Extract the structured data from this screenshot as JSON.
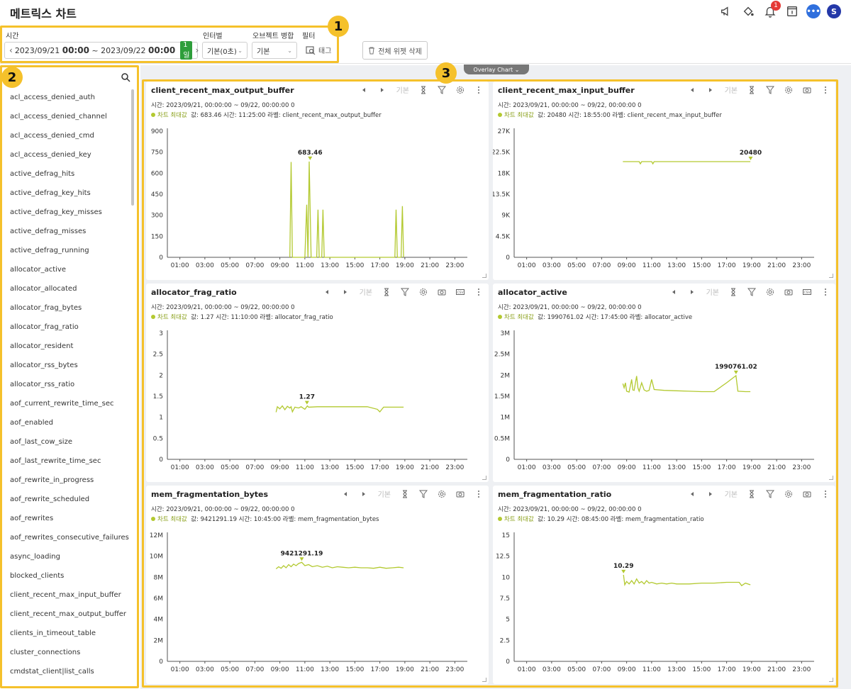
{
  "header": {
    "title": "메트릭스 차트",
    "notification_count": "1",
    "user_initial": "S"
  },
  "toolbar": {
    "time_label": "시간",
    "time_start_date": "2023/09/21",
    "time_start_hm": "00:00",
    "time_sep": "~",
    "time_end_date": "2023/09/22",
    "time_end_hm": "00:00",
    "time_range_badge": "1일",
    "interval_label": "인터벌",
    "interval_value": "기본(0초)",
    "merge_label": "오브젝트 병합",
    "merge_value": "기본",
    "filter_label": "필터",
    "filter_tag": "태그",
    "delete_all": "전체 위젯 삭제",
    "overlay_chart": "Overlay Chart"
  },
  "callouts": [
    "1",
    "2",
    "3"
  ],
  "sidebar": {
    "items": [
      "acl_access_denied_auth",
      "acl_access_denied_channel",
      "acl_access_denied_cmd",
      "acl_access_denied_key",
      "active_defrag_hits",
      "active_defrag_key_hits",
      "active_defrag_key_misses",
      "active_defrag_misses",
      "active_defrag_running",
      "allocator_active",
      "allocator_allocated",
      "allocator_frag_bytes",
      "allocator_frag_ratio",
      "allocator_resident",
      "allocator_rss_bytes",
      "allocator_rss_ratio",
      "aof_current_rewrite_time_sec",
      "aof_enabled",
      "aof_last_cow_size",
      "aof_last_rewrite_time_sec",
      "aof_rewrite_in_progress",
      "aof_rewrite_scheduled",
      "aof_rewrites",
      "aof_rewrites_consecutive_failures",
      "async_loading",
      "blocked_clients",
      "client_recent_max_input_buffer",
      "client_recent_max_output_buffer",
      "clients_in_timeout_table",
      "cluster_connections",
      "cmdstat_client|list_calls"
    ]
  },
  "card_common": {
    "tool_default": "기본",
    "max_label": "차트 최대값",
    "time_line": "시간: 2023/09/21, 00:00:00 ~ 09/22, 00:00:00   0"
  },
  "colors": {
    "series": "#b3c930",
    "highlight": "#f5c12b"
  },
  "chart_data": [
    {
      "type": "line",
      "title": "client_recent_max_output_buffer",
      "max_info": "값: 683.46   시간: 11:25:00   라벨: client_recent_max_output_buffer",
      "peak_label": "683.46",
      "ylim": [
        0,
        900
      ],
      "yticks": [
        "0",
        "150",
        "300",
        "450",
        "600",
        "750",
        "900"
      ],
      "ytick_values": [
        0,
        150,
        300,
        450,
        600,
        750,
        900
      ],
      "xticks": [
        "01:00",
        "03:00",
        "05:00",
        "07:00",
        "09:00",
        "11:00",
        "13:00",
        "15:00",
        "17:00",
        "19:00",
        "21:00",
        "23:00"
      ],
      "x": [
        9.8,
        9.9,
        10.0,
        10.1,
        11.0,
        11.15,
        11.25,
        11.35,
        11.5,
        11.95,
        12.05,
        12.15,
        12.35,
        12.45,
        12.55,
        18.2,
        18.3,
        18.4,
        18.7,
        18.8,
        18.9
      ],
      "y": [
        0,
        680,
        0,
        0,
        0,
        375,
        0,
        683,
        0,
        0,
        340,
        0,
        0,
        340,
        0,
        0,
        340,
        0,
        0,
        365,
        0
      ],
      "peak": [
        11.42,
        683.46
      ],
      "with_csv": false
    },
    {
      "type": "line",
      "title": "client_recent_max_input_buffer",
      "max_info": "값: 20480   시간: 18:55:00   라벨: client_recent_max_input_buffer",
      "peak_label": "20480",
      "ylim": [
        0,
        27000
      ],
      "yticks": [
        "0",
        "4.5K",
        "9K",
        "13.5K",
        "18K",
        "22.5K",
        "27K"
      ],
      "ytick_values": [
        0,
        4500,
        9000,
        13500,
        18000,
        22500,
        27000
      ],
      "xticks": [
        "01:00",
        "03:00",
        "05:00",
        "07:00",
        "09:00",
        "11:00",
        "13:00",
        "15:00",
        "17:00",
        "19:00",
        "21:00",
        "23:00"
      ],
      "x": [
        8.7,
        9.5,
        10.0,
        10.1,
        10.2,
        11.0,
        11.1,
        11.2,
        12.0,
        14.0,
        16.0,
        18.0,
        18.9
      ],
      "y": [
        20480,
        20480,
        20480,
        20000,
        20480,
        20480,
        20000,
        20480,
        20480,
        20480,
        20480,
        20480,
        20480
      ],
      "peak": [
        18.92,
        20480
      ],
      "with_csv": false
    },
    {
      "type": "line",
      "title": "allocator_frag_ratio",
      "max_info": "값: 1.27   시간: 11:10:00   라벨: allocator_frag_ratio",
      "peak_label": "1.27",
      "ylim": [
        0,
        3
      ],
      "yticks": [
        "0",
        "0.5",
        "1",
        "1.5",
        "2",
        "2.5",
        "3"
      ],
      "ytick_values": [
        0,
        0.5,
        1,
        1.5,
        2,
        2.5,
        3
      ],
      "xticks": [
        "01:00",
        "03:00",
        "05:00",
        "07:00",
        "09:00",
        "11:00",
        "13:00",
        "15:00",
        "17:00",
        "19:00",
        "21:00",
        "23:00"
      ],
      "x": [
        8.7,
        8.8,
        9.0,
        9.2,
        9.4,
        9.6,
        9.8,
        9.9,
        10.0,
        10.2,
        10.5,
        10.7,
        11.0,
        11.2,
        11.3,
        12.0,
        13.0,
        14.0,
        15.0,
        16.0,
        16.8,
        17.0,
        17.3,
        18.0,
        18.9
      ],
      "y": [
        1.12,
        1.25,
        1.2,
        1.27,
        1.18,
        1.26,
        1.22,
        1.25,
        1.13,
        1.24,
        1.22,
        1.25,
        1.19,
        1.27,
        1.24,
        1.25,
        1.25,
        1.25,
        1.25,
        1.25,
        1.19,
        1.13,
        1.24,
        1.24,
        1.24
      ],
      "peak": [
        11.17,
        1.27
      ],
      "with_csv": true
    },
    {
      "type": "line",
      "title": "allocator_active",
      "max_info": "값: 1990761.02   시간: 17:45:00   라벨: allocator_active",
      "peak_label": "1990761.02",
      "ylim": [
        0,
        3000000
      ],
      "yticks": [
        "0",
        "0.5M",
        "1M",
        "1.5M",
        "2M",
        "2.5M",
        "3M"
      ],
      "ytick_values": [
        0,
        500000,
        1000000,
        1500000,
        2000000,
        2500000,
        3000000
      ],
      "xticks": [
        "01:00",
        "03:00",
        "05:00",
        "07:00",
        "09:00",
        "11:00",
        "13:00",
        "15:00",
        "17:00",
        "19:00",
        "21:00",
        "23:00"
      ],
      "x": [
        8.7,
        8.8,
        8.9,
        9.0,
        9.2,
        9.4,
        9.5,
        9.6,
        9.8,
        9.9,
        10.0,
        10.2,
        10.4,
        10.6,
        10.8,
        11.0,
        11.2,
        12.0,
        13.0,
        14.0,
        15.0,
        16.0,
        17.0,
        17.75,
        17.9,
        18.5,
        18.9
      ],
      "y": [
        1800000,
        1700000,
        1820000,
        1620000,
        1600000,
        1900000,
        1650000,
        1640000,
        1980000,
        1700000,
        1620000,
        1820000,
        1650000,
        1620000,
        1640000,
        1900000,
        1660000,
        1640000,
        1630000,
        1620000,
        1610000,
        1610000,
        1820000,
        1990761,
        1620000,
        1610000,
        1610000
      ],
      "peak": [
        17.75,
        1990761.02
      ],
      "with_csv": true
    },
    {
      "type": "line",
      "title": "mem_fragmentation_bytes",
      "max_info": "값: 9421291.19   시간: 10:45:00   라벨: mem_fragmentation_bytes",
      "peak_label": "9421291.19",
      "ylim": [
        0,
        12000000
      ],
      "yticks": [
        "0",
        "2M",
        "4M",
        "6M",
        "8M",
        "10M",
        "12M"
      ],
      "ytick_values": [
        0,
        2000000,
        4000000,
        6000000,
        8000000,
        10000000,
        12000000
      ],
      "xticks": [
        "01:00",
        "03:00",
        "05:00",
        "07:00",
        "09:00",
        "11:00",
        "13:00",
        "15:00",
        "17:00",
        "19:00",
        "21:00",
        "23:00"
      ],
      "x": [
        8.7,
        8.9,
        9.1,
        9.3,
        9.5,
        9.7,
        9.9,
        10.1,
        10.3,
        10.5,
        10.75,
        11.0,
        11.3,
        11.6,
        12.0,
        12.4,
        12.8,
        13.2,
        13.6,
        14.0,
        14.5,
        15.0,
        15.5,
        16.0,
        16.5,
        17.0,
        17.5,
        18.0,
        18.5,
        18.9
      ],
      "y": [
        8800000,
        9000000,
        8850000,
        9100000,
        8900000,
        9200000,
        9000000,
        9250000,
        9100000,
        9300000,
        9421291,
        9100000,
        9200000,
        9000000,
        9100000,
        8950000,
        9050000,
        8900000,
        9000000,
        8950000,
        8900000,
        8950000,
        8900000,
        8900000,
        8850000,
        8950000,
        8850000,
        8900000,
        8950000,
        8900000
      ],
      "peak": [
        10.75,
        9421291.19
      ],
      "with_csv": false
    },
    {
      "type": "line",
      "title": "mem_fragmentation_ratio",
      "max_info": "값: 10.29   시간: 08:45:00   라벨: mem_fragmentation_ratio",
      "peak_label": "10.29",
      "ylim": [
        0,
        15
      ],
      "yticks": [
        "0",
        "2.5",
        "5",
        "7.5",
        "10",
        "12.5",
        "15"
      ],
      "ytick_values": [
        0,
        2.5,
        5,
        7.5,
        10,
        12.5,
        15
      ],
      "xticks": [
        "01:00",
        "03:00",
        "05:00",
        "07:00",
        "09:00",
        "11:00",
        "13:00",
        "15:00",
        "17:00",
        "19:00",
        "21:00",
        "23:00"
      ],
      "x": [
        8.75,
        8.85,
        9.0,
        9.2,
        9.4,
        9.6,
        9.8,
        10.0,
        10.2,
        10.4,
        10.6,
        10.8,
        11.0,
        11.4,
        11.8,
        12.2,
        12.6,
        13.0,
        14.0,
        15.0,
        16.0,
        17.0,
        18.0,
        18.2,
        18.5,
        18.9
      ],
      "y": [
        10.29,
        9.1,
        9.5,
        9.2,
        9.6,
        9.2,
        9.8,
        9.3,
        9.5,
        9.2,
        9.6,
        9.3,
        9.4,
        9.2,
        9.3,
        9.2,
        9.3,
        9.2,
        9.2,
        9.3,
        9.3,
        9.4,
        9.4,
        9.0,
        9.3,
        9.1
      ],
      "peak": [
        8.75,
        10.29
      ],
      "with_csv": false
    }
  ]
}
